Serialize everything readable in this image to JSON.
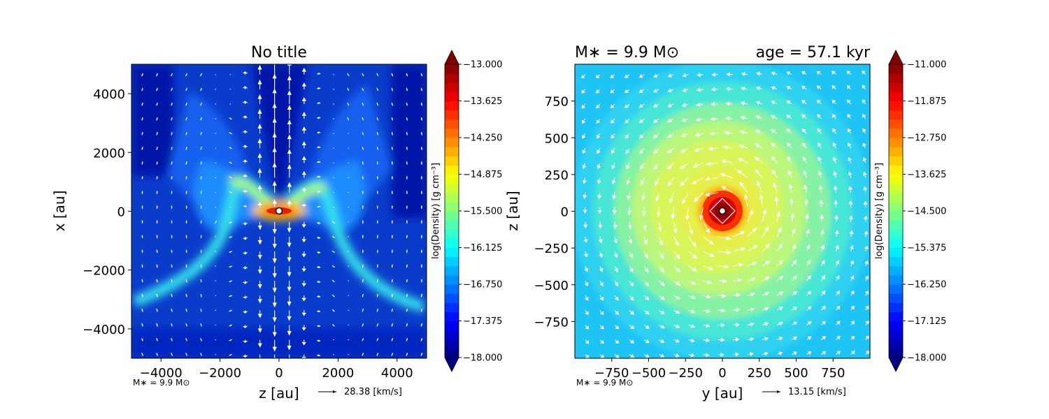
{
  "figure": {
    "background": "#ffffff"
  },
  "chart_data": [
    {
      "type": "heatmap",
      "title": "No title",
      "xlabel": "z [au]",
      "ylabel": "x [au]",
      "xlim": [
        -5000,
        5000
      ],
      "ylim": [
        -5000,
        5000
      ],
      "xticks": [
        -4000,
        -2000,
        0,
        2000,
        4000
      ],
      "xtick_labels": [
        "−4000",
        "−2000",
        "0",
        "2000",
        "4000"
      ],
      "yticks": [
        4000,
        2000,
        0,
        -2000,
        -4000
      ],
      "ytick_labels": [
        "4000",
        "2000",
        "0",
        "−2000",
        "−4000"
      ],
      "grid": false,
      "field": "log(Density)",
      "colorbar": {
        "label": "log(Density) [g cm⁻³]",
        "min": -18.0,
        "max": -13.0,
        "ticks": [
          -13.0,
          -13.625,
          -14.25,
          -14.875,
          -15.5,
          -16.125,
          -16.75,
          -17.375,
          -18.0
        ],
        "tick_labels": [
          "−13.000",
          "−13.625",
          "−14.250",
          "−14.875",
          "−15.500",
          "−16.125",
          "−16.750",
          "−17.375",
          "−18.000"
        ],
        "colormap": "jet",
        "extend": "both"
      },
      "features": {
        "background_level": -17.6,
        "outflow_cavity": "bipolar, low density along the vertical axis",
        "peak_level_at_center": -13.2
      },
      "annotation_mass": "M∗ = 9.9 M⊙",
      "quiver_key": {
        "value": 28.38,
        "label": "28.38 [km/s]"
      },
      "velocity_pattern": "outflow"
    },
    {
      "type": "heatmap",
      "title_left": "M∗ = 9.9 M⊙",
      "title_right": "age = 57.1 kyr",
      "xlabel": "y [au]",
      "ylabel": "z [au]",
      "xlim": [
        -1000,
        1000
      ],
      "ylim": [
        -1000,
        1000
      ],
      "xticks": [
        -750,
        -500,
        -250,
        0,
        250,
        500,
        750
      ],
      "xtick_labels": [
        "−750",
        "−500",
        "−250",
        "0",
        "250",
        "500",
        "750"
      ],
      "yticks": [
        750,
        500,
        250,
        0,
        -250,
        -500,
        -750
      ],
      "ytick_labels": [
        "750",
        "500",
        "250",
        "0",
        "−250",
        "−500",
        "−750"
      ],
      "grid": false,
      "field": "log(Density)",
      "colorbar": {
        "label": "log(Density) [g cm⁻³]",
        "min": -18.0,
        "max": -11.0,
        "ticks": [
          -11.0,
          -11.875,
          -12.75,
          -13.625,
          -14.5,
          -15.375,
          -16.25,
          -17.125,
          -18.0
        ],
        "tick_labels": [
          "−11.000",
          "−11.875",
          "−12.750",
          "−13.625",
          "−14.500",
          "−15.375",
          "−16.250",
          "−17.125",
          "−18.000"
        ],
        "colormap": "jet",
        "extend": "both"
      },
      "features": {
        "edge_level": -15.4,
        "ring_level": -14.2,
        "peak_level_at_center": -11.3
      },
      "annotation_mass": "M∗ = 9.9 M⊙",
      "quiver_key": {
        "value": 13.15,
        "label": "13.15 [km/s]"
      },
      "velocity_pattern": "rotation"
    }
  ]
}
